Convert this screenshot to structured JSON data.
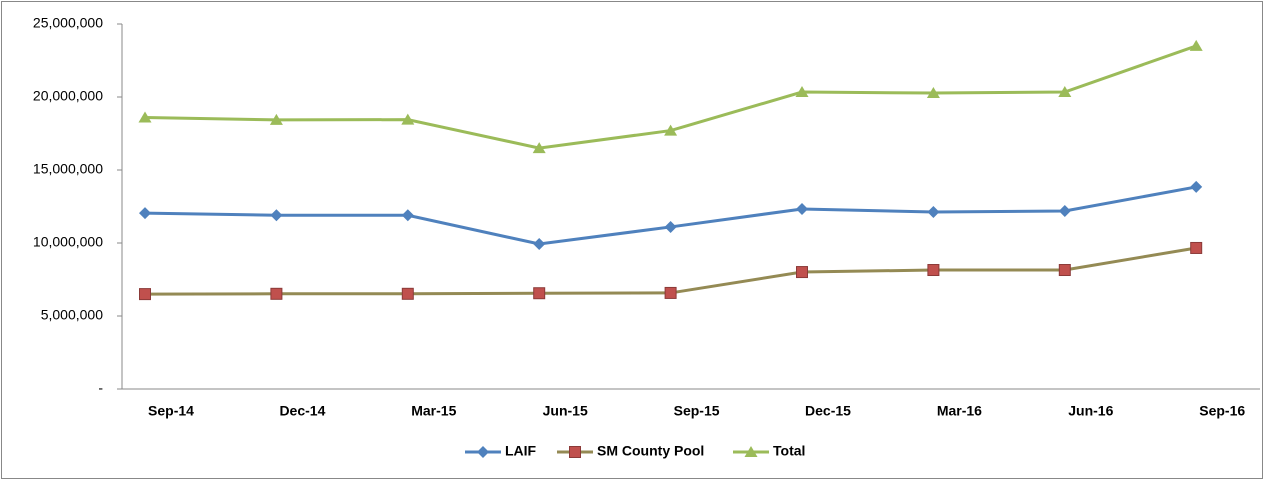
{
  "chart_data": {
    "type": "line",
    "categories": [
      "Sep-14",
      "Dec-14",
      "Mar-15",
      "Jun-15",
      "Sep-15",
      "Dec-15",
      "Mar-16",
      "Jun-16",
      "Sep-16"
    ],
    "series": [
      {
        "name": "LAIF",
        "color": "#4f81bd",
        "marker_color": "#4f81bd",
        "marker": "diamond",
        "values": [
          12050000,
          11900000,
          11900000,
          9930000,
          11100000,
          12330000,
          12120000,
          12190000,
          13840000
        ]
      },
      {
        "name": "SM County Pool",
        "color": "#948a54",
        "marker_color": "#c0504d",
        "marker": "square",
        "values": [
          6500000,
          6520000,
          6520000,
          6560000,
          6580000,
          8010000,
          8150000,
          8150000,
          9660000
        ]
      },
      {
        "name": "Total",
        "color": "#9bbb59",
        "marker_color": "#9bbb59",
        "marker": "triangle",
        "values": [
          18600000,
          18430000,
          18450000,
          16500000,
          17700000,
          20340000,
          20270000,
          20340000,
          23500000
        ]
      }
    ],
    "ylim": [
      0,
      25000000
    ],
    "yticks": [
      {
        "value": 0,
        "label": "-"
      },
      {
        "value": 5000000,
        "label": "5,000,000"
      },
      {
        "value": 10000000,
        "label": "10,000,000"
      },
      {
        "value": 15000000,
        "label": "15,000,000"
      },
      {
        "value": 20000000,
        "label": "20,000,000"
      },
      {
        "value": 25000000,
        "label": "25,000,000"
      }
    ],
    "legend": "bottom"
  }
}
